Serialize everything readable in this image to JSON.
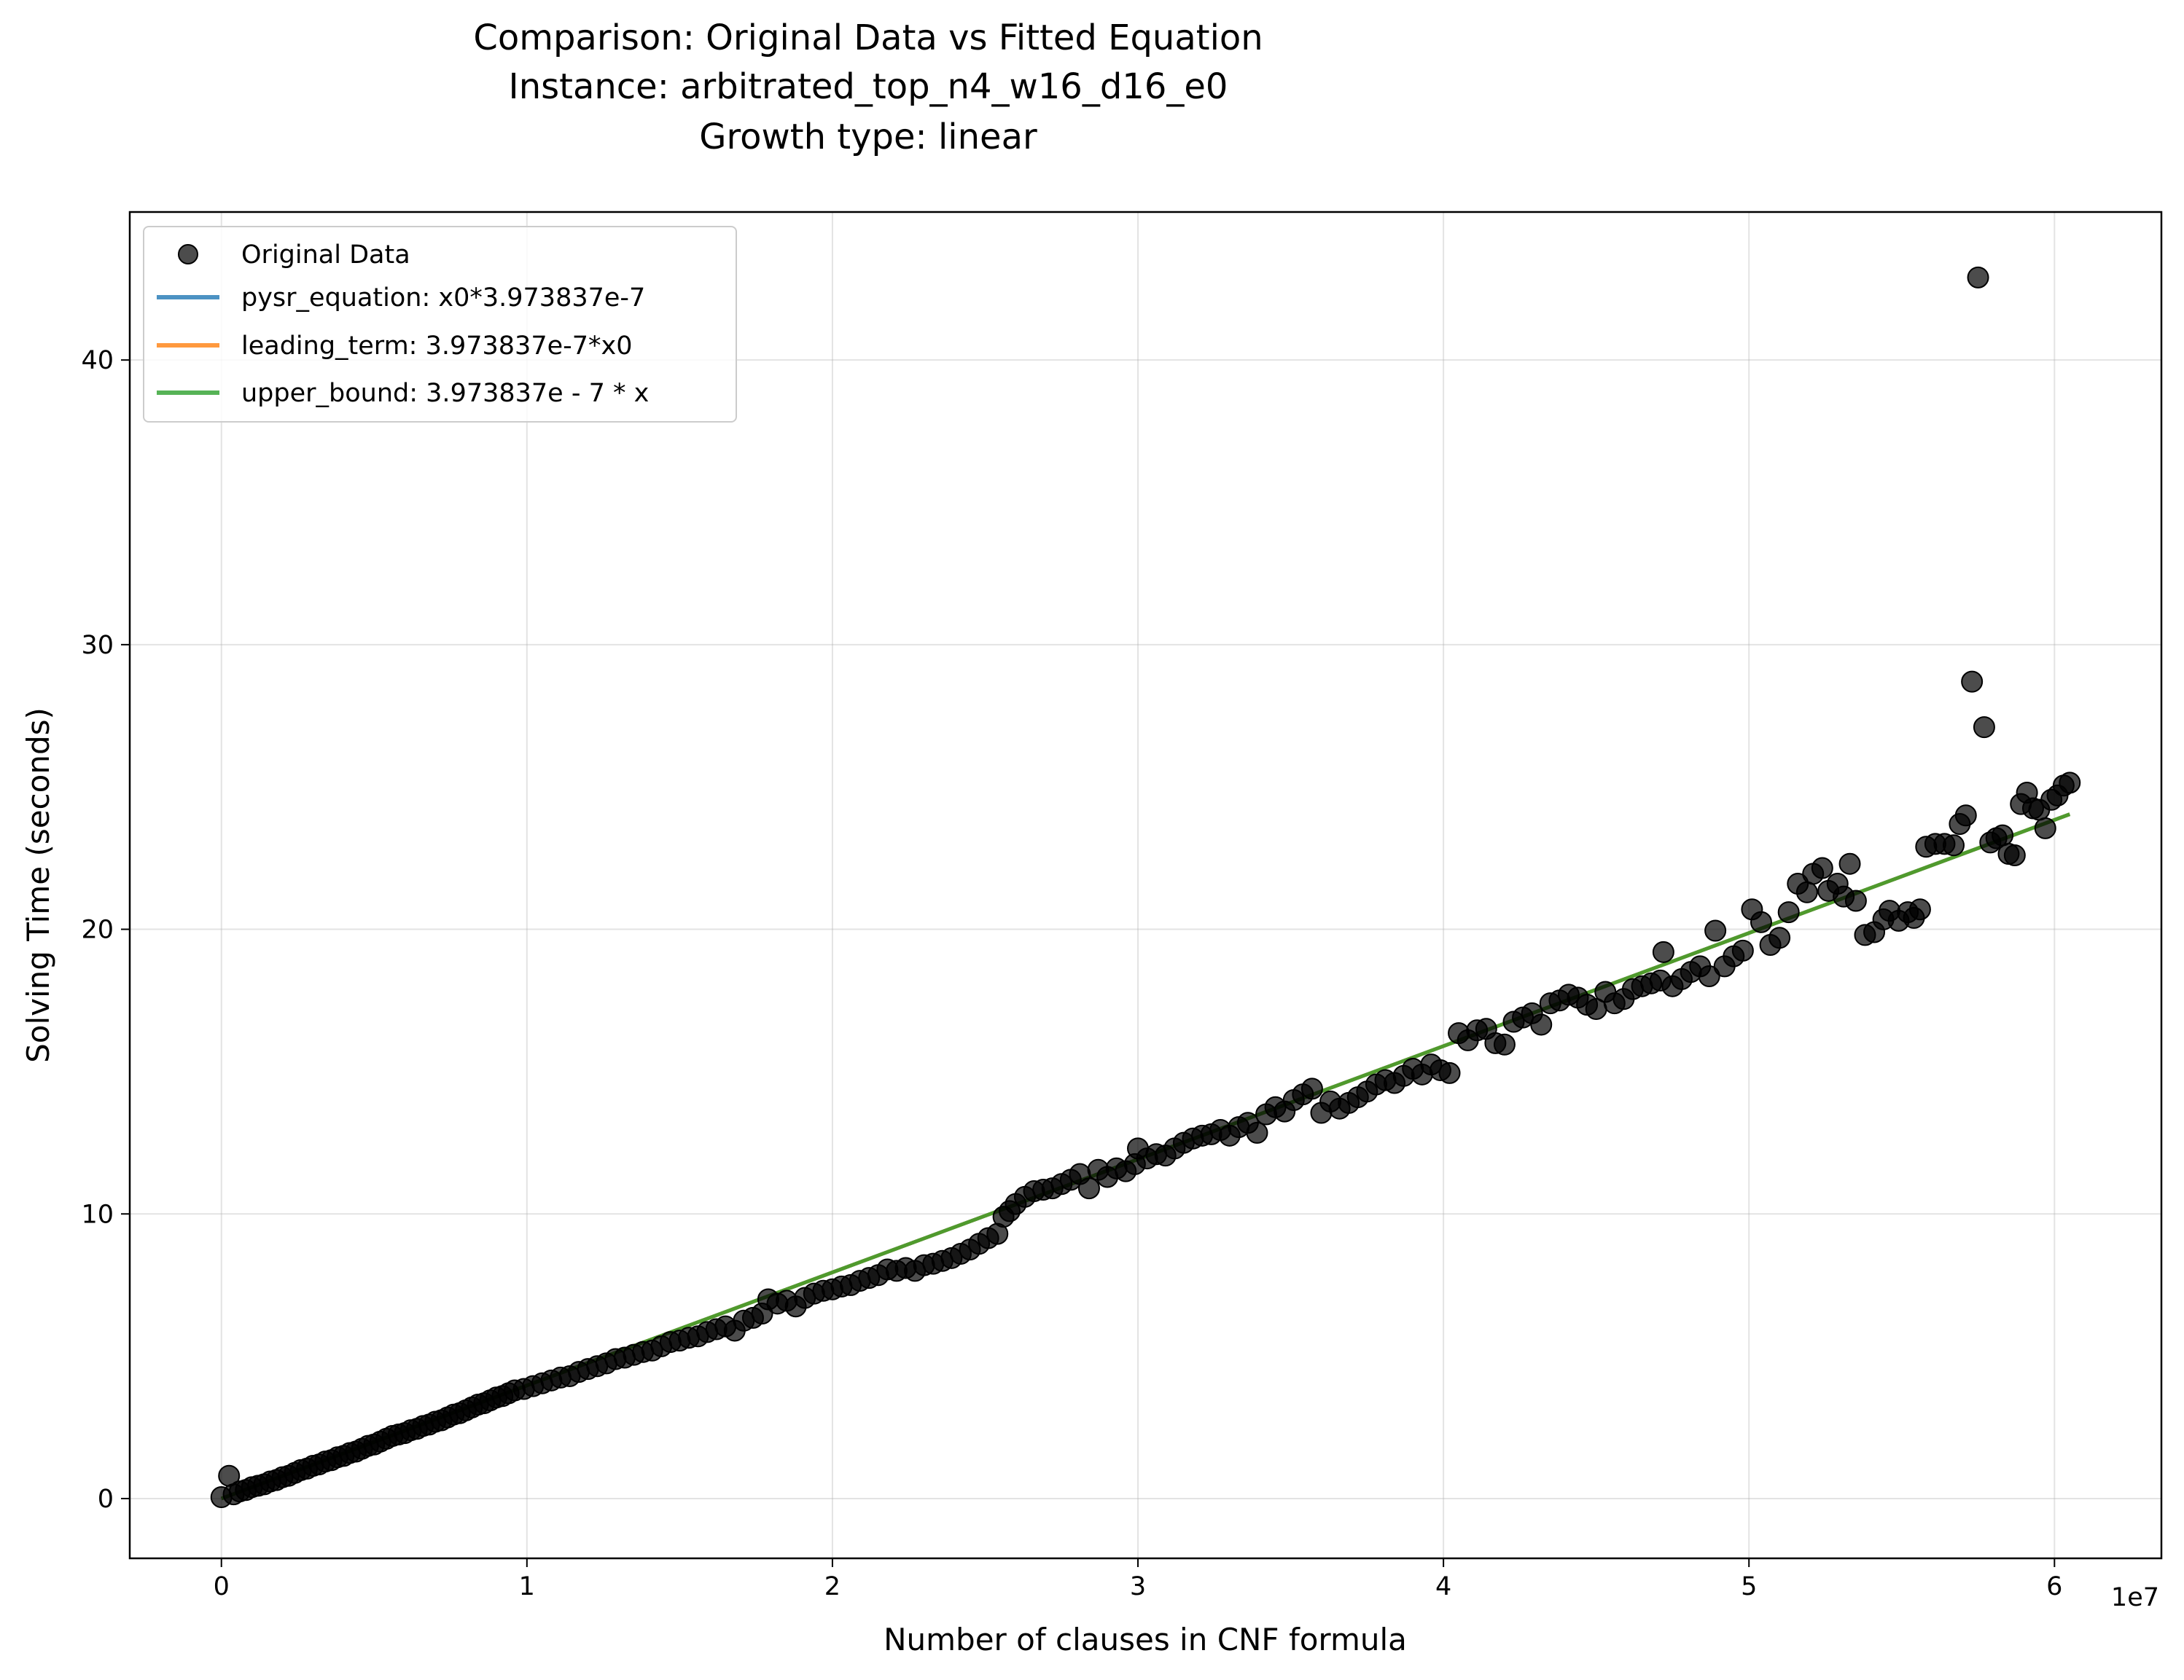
{
  "chart_data": {
    "type": "scatter",
    "title_lines": [
      "Comparison: Original Data vs Fitted Equation",
      "Instance: arbitrated_top_n4_w16_d16_e0",
      "Growth type: linear"
    ],
    "xlabel": "Number of clauses in CNF formula",
    "ylabel": "Solving Time (seconds)",
    "x_offset_label": "1e7",
    "xlim": [
      -3000000,
      63500000
    ],
    "ylim": [
      -2.1,
      45.2
    ],
    "x_ticks": [
      0,
      10000000,
      20000000,
      30000000,
      40000000,
      50000000,
      60000000
    ],
    "x_tick_labels": [
      "0",
      "1",
      "2",
      "3",
      "4",
      "5",
      "6"
    ],
    "y_ticks": [
      0,
      10,
      20,
      30,
      40
    ],
    "y_tick_labels": [
      "0",
      "10",
      "20",
      "30",
      "40"
    ],
    "grid": true,
    "legend_position": "upper-left",
    "legend": [
      {
        "label": "Original Data",
        "kind": "marker",
        "color": "#000000"
      },
      {
        "label": "pysr_equation: x0*3.973837e-7",
        "kind": "line",
        "color": "#1f77b4"
      },
      {
        "label": "leading_term: 3.973837e-7*x0",
        "kind": "line",
        "color": "#ff7f0e"
      },
      {
        "label": "upper_bound: 3.973837e - 7 * x",
        "kind": "line",
        "color": "#2ca02c"
      }
    ],
    "lines": [
      {
        "name": "pysr_equation: x0*3.973837e-7",
        "color": "#1f77b4",
        "coef": 3.973837e-07,
        "x_range": [
          0,
          60500000
        ]
      },
      {
        "name": "leading_term: 3.973837e-7*x0",
        "color": "#ff7f0e",
        "coef": 3.973837e-07,
        "x_range": [
          0,
          60500000
        ]
      },
      {
        "name": "upper_bound: 3.973837e - 7 * x",
        "color": "#2ca02c",
        "coef": 3.973837e-07,
        "x_range": [
          0,
          60500000
        ]
      }
    ],
    "series": [
      {
        "name": "Original Data",
        "color": "#000000",
        "points": [
          [
            0,
            0.05
          ],
          [
            250000,
            0.8
          ],
          [
            400000,
            0.15
          ],
          [
            600000,
            0.25
          ],
          [
            800000,
            0.3
          ],
          [
            1000000,
            0.4
          ],
          [
            1200000,
            0.45
          ],
          [
            1400000,
            0.5
          ],
          [
            1600000,
            0.6
          ],
          [
            1800000,
            0.65
          ],
          [
            2000000,
            0.75
          ],
          [
            2200000,
            0.8
          ],
          [
            2400000,
            0.9
          ],
          [
            2600000,
            1.0
          ],
          [
            2800000,
            1.05
          ],
          [
            3000000,
            1.15
          ],
          [
            3200000,
            1.2
          ],
          [
            3400000,
            1.3
          ],
          [
            3600000,
            1.35
          ],
          [
            3800000,
            1.45
          ],
          [
            4000000,
            1.5
          ],
          [
            4200000,
            1.6
          ],
          [
            4400000,
            1.65
          ],
          [
            4600000,
            1.75
          ],
          [
            4800000,
            1.85
          ],
          [
            5000000,
            1.9
          ],
          [
            5200000,
            2.0
          ],
          [
            5400000,
            2.1
          ],
          [
            5600000,
            2.2
          ],
          [
            5800000,
            2.25
          ],
          [
            6000000,
            2.3
          ],
          [
            6200000,
            2.4
          ],
          [
            6400000,
            2.45
          ],
          [
            6600000,
            2.55
          ],
          [
            6800000,
            2.6
          ],
          [
            7000000,
            2.7
          ],
          [
            7200000,
            2.75
          ],
          [
            7400000,
            2.85
          ],
          [
            7600000,
            2.95
          ],
          [
            7800000,
            3.0
          ],
          [
            8000000,
            3.1
          ],
          [
            8200000,
            3.2
          ],
          [
            8400000,
            3.3
          ],
          [
            8600000,
            3.35
          ],
          [
            8800000,
            3.45
          ],
          [
            9000000,
            3.55
          ],
          [
            9200000,
            3.6
          ],
          [
            9400000,
            3.7
          ],
          [
            9600000,
            3.8
          ],
          [
            9900000,
            3.85
          ],
          [
            10200000,
            3.95
          ],
          [
            10500000,
            4.05
          ],
          [
            10800000,
            4.15
          ],
          [
            11100000,
            4.25
          ],
          [
            11400000,
            4.3
          ],
          [
            11700000,
            4.45
          ],
          [
            12000000,
            4.55
          ],
          [
            12300000,
            4.65
          ],
          [
            12600000,
            4.75
          ],
          [
            12900000,
            4.9
          ],
          [
            13200000,
            4.95
          ],
          [
            13500000,
            5.05
          ],
          [
            13800000,
            5.15
          ],
          [
            14100000,
            5.2
          ],
          [
            14400000,
            5.35
          ],
          [
            14700000,
            5.5
          ],
          [
            15000000,
            5.55
          ],
          [
            15300000,
            5.65
          ],
          [
            15600000,
            5.7
          ],
          [
            15900000,
            5.85
          ],
          [
            16200000,
            5.95
          ],
          [
            16500000,
            6.05
          ],
          [
            16800000,
            5.9
          ],
          [
            17100000,
            6.25
          ],
          [
            17400000,
            6.35
          ],
          [
            17700000,
            6.5
          ],
          [
            17900000,
            7.0
          ],
          [
            18200000,
            6.85
          ],
          [
            18500000,
            6.95
          ],
          [
            18800000,
            6.75
          ],
          [
            19100000,
            7.05
          ],
          [
            19400000,
            7.2
          ],
          [
            19700000,
            7.3
          ],
          [
            20000000,
            7.35
          ],
          [
            20300000,
            7.45
          ],
          [
            20600000,
            7.5
          ],
          [
            20900000,
            7.65
          ],
          [
            21200000,
            7.75
          ],
          [
            21500000,
            7.85
          ],
          [
            21800000,
            8.05
          ],
          [
            22100000,
            8.0
          ],
          [
            22400000,
            8.1
          ],
          [
            22700000,
            8.0
          ],
          [
            23000000,
            8.2
          ],
          [
            23300000,
            8.25
          ],
          [
            23600000,
            8.35
          ],
          [
            23900000,
            8.45
          ],
          [
            24200000,
            8.6
          ],
          [
            24500000,
            8.75
          ],
          [
            24800000,
            8.95
          ],
          [
            25100000,
            9.15
          ],
          [
            25400000,
            9.3
          ],
          [
            25600000,
            9.9
          ],
          [
            25800000,
            10.1
          ],
          [
            26000000,
            10.35
          ],
          [
            26300000,
            10.6
          ],
          [
            26600000,
            10.8
          ],
          [
            26900000,
            10.85
          ],
          [
            27200000,
            10.9
          ],
          [
            27500000,
            11.05
          ],
          [
            27800000,
            11.2
          ],
          [
            28100000,
            11.4
          ],
          [
            28400000,
            10.9
          ],
          [
            28700000,
            11.55
          ],
          [
            29000000,
            11.3
          ],
          [
            29300000,
            11.6
          ],
          [
            29600000,
            11.5
          ],
          [
            29900000,
            11.75
          ],
          [
            30000000,
            12.3
          ],
          [
            30300000,
            11.95
          ],
          [
            30600000,
            12.1
          ],
          [
            30900000,
            12.05
          ],
          [
            31200000,
            12.3
          ],
          [
            31500000,
            12.5
          ],
          [
            31800000,
            12.65
          ],
          [
            32100000,
            12.75
          ],
          [
            32400000,
            12.8
          ],
          [
            32700000,
            12.95
          ],
          [
            33000000,
            12.75
          ],
          [
            33300000,
            13.05
          ],
          [
            33600000,
            13.2
          ],
          [
            33900000,
            12.85
          ],
          [
            34200000,
            13.5
          ],
          [
            34500000,
            13.75
          ],
          [
            34800000,
            13.6
          ],
          [
            35100000,
            14.0
          ],
          [
            35400000,
            14.2
          ],
          [
            35700000,
            14.4
          ],
          [
            36000000,
            13.55
          ],
          [
            36300000,
            13.95
          ],
          [
            36600000,
            13.7
          ],
          [
            36900000,
            13.9
          ],
          [
            37200000,
            14.1
          ],
          [
            37500000,
            14.3
          ],
          [
            37800000,
            14.55
          ],
          [
            38100000,
            14.7
          ],
          [
            38400000,
            14.6
          ],
          [
            38700000,
            14.85
          ],
          [
            39000000,
            15.1
          ],
          [
            39300000,
            14.9
          ],
          [
            39600000,
            15.25
          ],
          [
            39900000,
            15.05
          ],
          [
            40200000,
            14.95
          ],
          [
            40500000,
            16.35
          ],
          [
            40800000,
            16.1
          ],
          [
            41100000,
            16.45
          ],
          [
            41400000,
            16.5
          ],
          [
            41700000,
            16.0
          ],
          [
            42000000,
            15.95
          ],
          [
            42300000,
            16.75
          ],
          [
            42600000,
            16.9
          ],
          [
            42900000,
            17.05
          ],
          [
            43200000,
            16.65
          ],
          [
            43500000,
            17.4
          ],
          [
            43800000,
            17.5
          ],
          [
            44100000,
            17.7
          ],
          [
            44400000,
            17.6
          ],
          [
            44700000,
            17.35
          ],
          [
            45000000,
            17.2
          ],
          [
            45300000,
            17.8
          ],
          [
            45600000,
            17.4
          ],
          [
            45900000,
            17.55
          ],
          [
            46200000,
            17.9
          ],
          [
            46500000,
            18.0
          ],
          [
            46800000,
            18.1
          ],
          [
            47100000,
            18.2
          ],
          [
            47200000,
            19.2
          ],
          [
            47500000,
            18.0
          ],
          [
            47800000,
            18.25
          ],
          [
            48100000,
            18.5
          ],
          [
            48400000,
            18.7
          ],
          [
            48700000,
            18.35
          ],
          [
            48900000,
            19.95
          ],
          [
            49200000,
            18.7
          ],
          [
            49500000,
            19.05
          ],
          [
            49800000,
            19.25
          ],
          [
            50100000,
            20.7
          ],
          [
            50400000,
            20.25
          ],
          [
            50700000,
            19.45
          ],
          [
            51000000,
            19.7
          ],
          [
            51300000,
            20.6
          ],
          [
            51600000,
            21.6
          ],
          [
            51900000,
            21.3
          ],
          [
            52100000,
            21.95
          ],
          [
            52400000,
            22.15
          ],
          [
            52600000,
            21.35
          ],
          [
            52900000,
            21.6
          ],
          [
            53100000,
            21.15
          ],
          [
            53300000,
            22.3
          ],
          [
            53500000,
            21.0
          ],
          [
            53800000,
            19.8
          ],
          [
            54100000,
            19.9
          ],
          [
            54400000,
            20.35
          ],
          [
            54600000,
            20.65
          ],
          [
            54900000,
            20.3
          ],
          [
            55200000,
            20.6
          ],
          [
            55400000,
            20.4
          ],
          [
            55600000,
            20.7
          ],
          [
            55800000,
            22.9
          ],
          [
            56100000,
            23.0
          ],
          [
            56400000,
            23.0
          ],
          [
            56700000,
            22.95
          ],
          [
            56900000,
            23.7
          ],
          [
            57100000,
            24.0
          ],
          [
            57300000,
            28.7
          ],
          [
            57500000,
            42.9
          ],
          [
            57700000,
            27.1
          ],
          [
            57900000,
            23.05
          ],
          [
            58100000,
            23.2
          ],
          [
            58300000,
            23.3
          ],
          [
            58500000,
            22.65
          ],
          [
            58700000,
            22.6
          ],
          [
            58900000,
            24.4
          ],
          [
            59100000,
            24.8
          ],
          [
            59300000,
            24.25
          ],
          [
            59500000,
            24.2
          ],
          [
            59700000,
            23.55
          ],
          [
            59900000,
            24.55
          ],
          [
            60100000,
            24.7
          ],
          [
            60300000,
            25.05
          ],
          [
            60500000,
            25.15
          ]
        ]
      }
    ]
  }
}
